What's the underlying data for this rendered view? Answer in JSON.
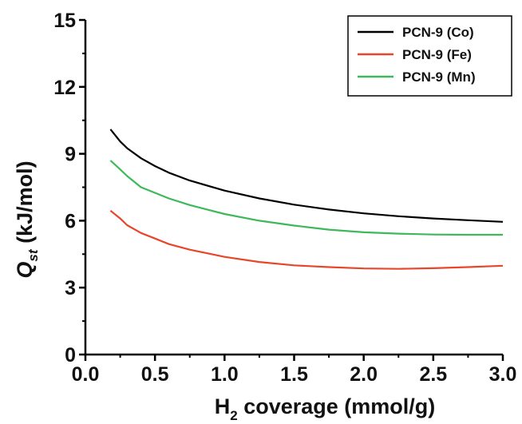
{
  "chart_data": {
    "type": "line",
    "xlabel": {
      "main": "H",
      "sub": "2",
      "rest": " coverage (mmol/g)"
    },
    "ylabel": {
      "main": "Q",
      "sub": "st",
      "rest": " (kJ/mol)"
    },
    "xlim": [
      0.0,
      3.0
    ],
    "ylim": [
      0,
      15
    ],
    "x_ticks": [
      "0.0",
      "0.5",
      "1.0",
      "1.5",
      "2.0",
      "2.5",
      "3.0"
    ],
    "y_ticks": [
      "0",
      "3",
      "6",
      "9",
      "12",
      "15"
    ],
    "grid": false,
    "legend_position": "top-right",
    "series": [
      {
        "name": "PCN-9 (Co)",
        "color": "#000000",
        "x": [
          0.18,
          0.25,
          0.3,
          0.4,
          0.5,
          0.6,
          0.75,
          1.0,
          1.25,
          1.5,
          1.75,
          2.0,
          2.25,
          2.5,
          2.75,
          3.0
        ],
        "y": [
          10.1,
          9.55,
          9.25,
          8.8,
          8.45,
          8.15,
          7.8,
          7.35,
          7.0,
          6.72,
          6.5,
          6.33,
          6.2,
          6.1,
          6.02,
          5.95
        ]
      },
      {
        "name": "PCN-9 (Fe)",
        "color": "#e8462a",
        "x": [
          0.18,
          0.25,
          0.3,
          0.4,
          0.5,
          0.6,
          0.75,
          1.0,
          1.25,
          1.5,
          1.75,
          2.0,
          2.25,
          2.5,
          2.75,
          3.0
        ],
        "y": [
          6.45,
          6.1,
          5.8,
          5.45,
          5.2,
          4.95,
          4.7,
          4.38,
          4.15,
          4.0,
          3.92,
          3.86,
          3.84,
          3.87,
          3.92,
          3.98
        ]
      },
      {
        "name": "PCN-9 (Mn)",
        "color": "#3db85a",
        "x": [
          0.18,
          0.25,
          0.3,
          0.4,
          0.5,
          0.6,
          0.75,
          1.0,
          1.25,
          1.5,
          1.75,
          2.0,
          2.25,
          2.5,
          2.75,
          3.0
        ],
        "y": [
          8.7,
          8.3,
          8.0,
          7.5,
          7.25,
          7.0,
          6.7,
          6.3,
          6.0,
          5.78,
          5.6,
          5.48,
          5.42,
          5.38,
          5.37,
          5.37
        ]
      }
    ]
  }
}
